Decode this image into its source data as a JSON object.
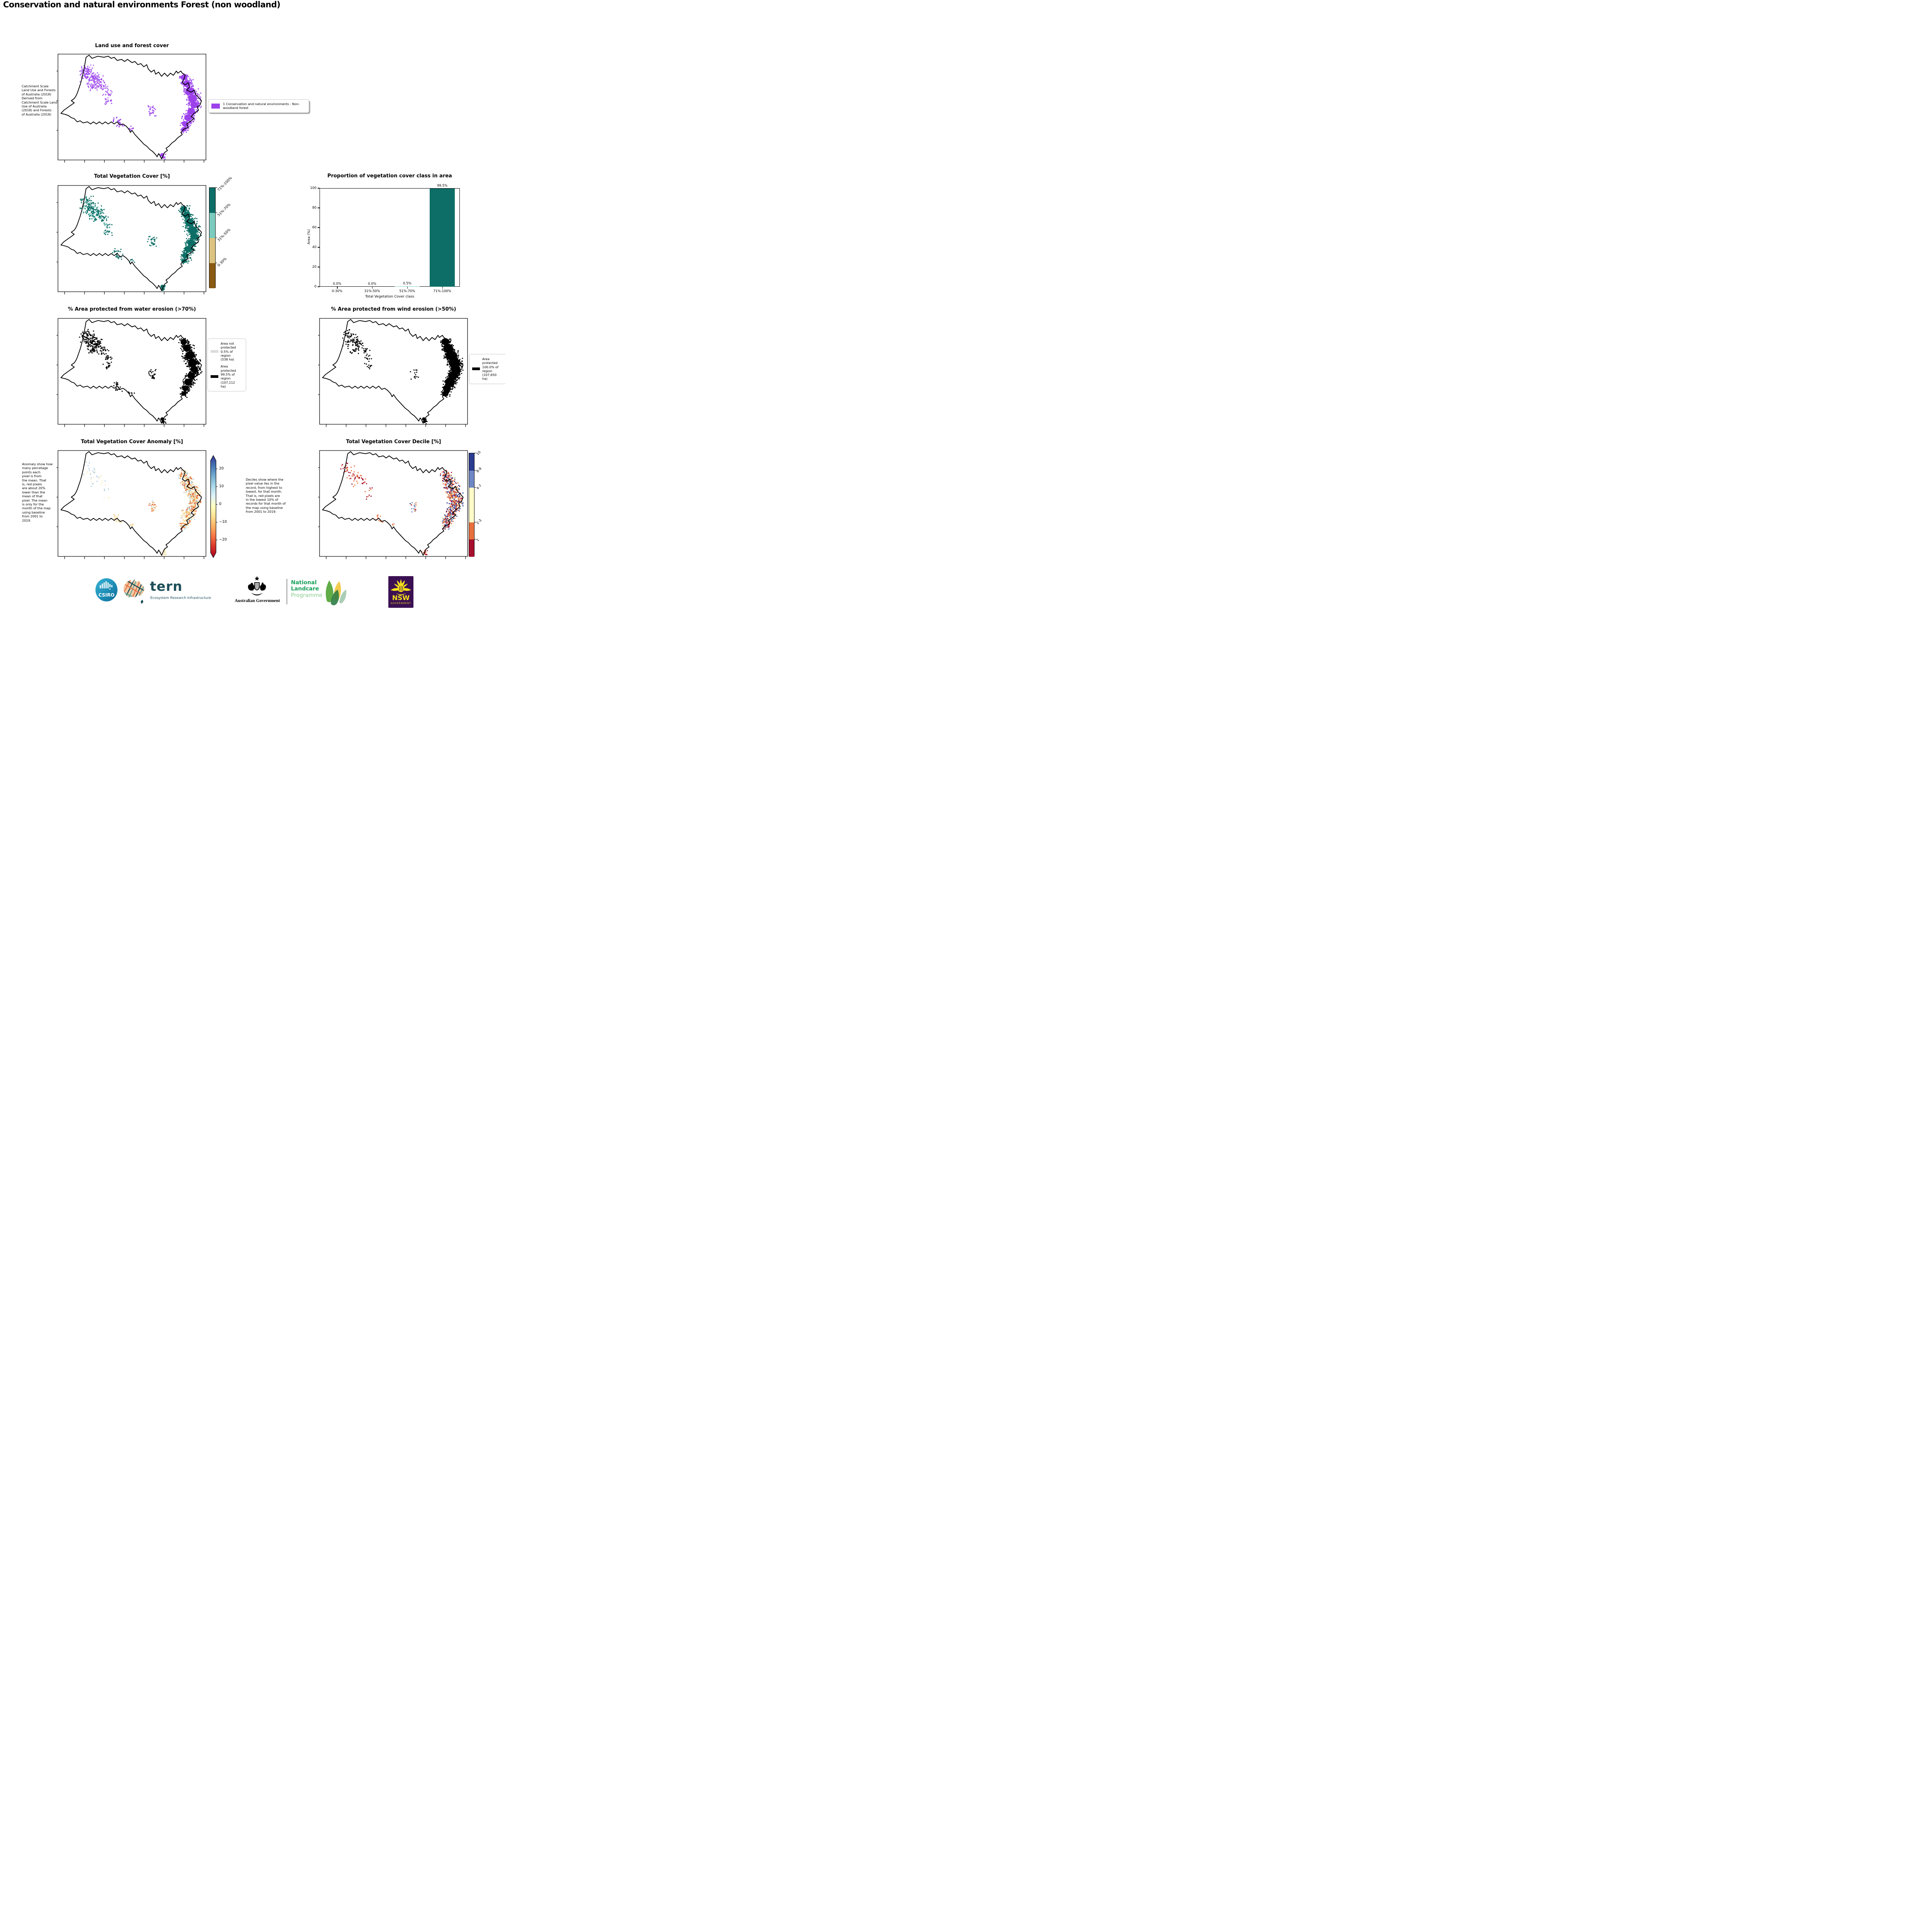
{
  "page": {
    "title": "Conservation and natural environments Forest (non woodland)"
  },
  "panels": {
    "landuse": {
      "title": "Land use and forest cover",
      "side_note": " Catchment Scale\nLand Use and Forests\nof Australia (2018)\nDerived from\nCatchment Scale Land\nUse of Australia\n(2018) and Forests\nof Australia (2018)",
      "legend": {
        "swatch_color": "#9C42EC",
        "label": "1 Conservation and natural environments - Non-\nwoodland forest"
      },
      "map_colors": [
        "#9C42EC",
        "#B06FF0"
      ]
    },
    "tvc": {
      "title": "Total Vegetation Cover [%]",
      "colorbar": [
        {
          "label": "71%-100%",
          "color": "#0C6E66"
        },
        {
          "label": "51%-70%",
          "color": "#7CCBBF"
        },
        {
          "label": "31%-50%",
          "color": "#DCC380"
        },
        {
          "label": "0-30%",
          "color": "#8A5A12"
        }
      ],
      "map_colors": [
        "#0C6E66",
        "#0C6E66",
        "#0C6E66",
        "#7CCBBF"
      ]
    },
    "water": {
      "title": "% Area protected from water erosion (>70%)",
      "legend": [
        {
          "color": "#DCDCDC",
          "label": "Area not\nprotected\n0.5% of\nregion\n(538 ha)"
        },
        {
          "color": "#000000",
          "label": "Area\nprotected\n99.5% of\nregion\n(107,112\nha)"
        }
      ],
      "map_colors": [
        "#000000"
      ]
    },
    "wind": {
      "title": "% Area protected from wind erosion (>50%)",
      "legend": [
        {
          "color": "#000000",
          "label": "Area\nprotected\n100.0% of\nregion\n(107,650\nha)"
        }
      ],
      "map_colors": [
        "#000000"
      ]
    },
    "anomaly": {
      "title": "Total Vegetation Cover Anomaly [%]",
      "side_note": "Anomaly show how\nmany percetage\npoints each\npixel is from\nthe mean. That\nis, red pixels\nare about 20%\nlower than the\nmean of that\npixel. The mean\nis only for the\nmonth of the map\nusing baseline\nfrom 2001 to\n2019.",
      "colorbar_ticks": [
        "20",
        "10",
        "0",
        "−10",
        "−20"
      ],
      "colorbar_gradient": [
        "#313695",
        "#4575b4",
        "#74add1",
        "#abd9e9",
        "#e0f3f8",
        "#ffffbf",
        "#fee090",
        "#fdae61",
        "#f46d43",
        "#d73027",
        "#a50026"
      ],
      "map_colors": [
        "#F9EFC4",
        "#F7E3A2",
        "#F4C579",
        "#EC9A4E",
        "#E2572F",
        "#AFCFE2"
      ]
    },
    "decile": {
      "title": "Total Vegetation Cover Decile [%]",
      "side_note": "Deciles show where the\npixel value lies in the\nrecord, from highest to\nlowest, for that month.\nThat is, red pixels are\nin the lowest 10% of\nrecords for that month of\nthe map using baseline\nfrom 2001 to 2019.",
      "colorbar": [
        {
          "label": "10",
          "color": "#2B3C8F"
        },
        {
          "label": "8-9",
          "color": "#6E87C4"
        },
        {
          "label": "4-7",
          "color": "#FDFBC8"
        },
        {
          "label": "2-3",
          "color": "#E8703D"
        },
        {
          "label": "1",
          "color": "#A60F2D"
        }
      ],
      "map_colors": [
        "#A60F2D",
        "#E8703D",
        "#E8703D",
        "#FDFBC8",
        "#6E87C4",
        "#2B3C8F"
      ]
    }
  },
  "chart_data": {
    "type": "bar",
    "title": "Proportion of vegetation cover class in area",
    "categories": [
      "0-30%",
      "31%-50%",
      "51%-70%",
      "71%-100%"
    ],
    "values": [
      0.0,
      0.0,
      0.5,
      99.5
    ],
    "bar_labels": [
      "0.0%",
      "0.0%",
      "0.5%",
      "99.5%"
    ],
    "bar_colors": [
      "#0C6E66",
      "#0C6E66",
      "#7CCBBF",
      "#0C6E66"
    ],
    "xlabel": "Total Vegetation Cover class",
    "ylabel": "Area (%)",
    "yticks": [
      0,
      20,
      40,
      60,
      80,
      100
    ],
    "ylim": [
      0,
      100
    ],
    "grid": false,
    "legend": "none"
  },
  "footer": {
    "csiro": {
      "label": "CSIRO",
      "color_top": "#2FA8CF",
      "color_bottom": "#0C6E9B"
    },
    "tern": {
      "name": "tern",
      "subtitle": "Ecosystem Research Infrastructure",
      "color": "#1D4F5A"
    },
    "ausgov": {
      "label": "Australian Government"
    },
    "landcare": {
      "line1": "National",
      "line2": "Landcare",
      "line3": "Programme",
      "green": "#18A05A",
      "light_green": "#8BCB8F"
    },
    "nsw": {
      "name": "NSW",
      "subtitle": "GOVERNMENT",
      "purple": "#3B1053",
      "yellow": "#F6E21A"
    }
  }
}
